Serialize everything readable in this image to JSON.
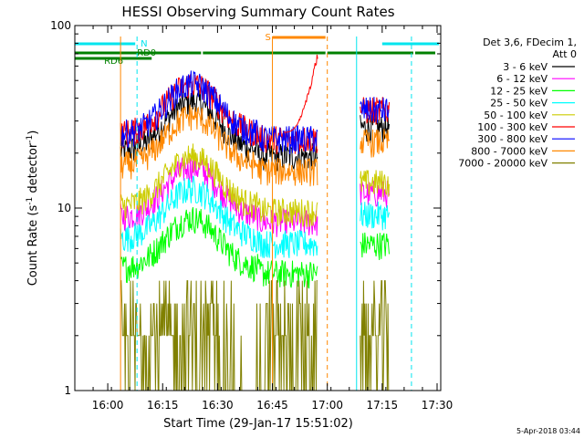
{
  "chart_data": {
    "type": "line",
    "title": "HESSI Observing Summary Count Rates",
    "xlabel": "Start Time (29-Jan-17 15:51:02)",
    "ylabel_main": "Count Rate (s",
    "ylabel_sup1": "-1",
    "ylabel_mid": " detector",
    "ylabel_sup2": "-1",
    "ylabel_end": ")",
    "yscale": "log",
    "ylim": [
      1,
      100
    ],
    "xlim_minutes": [
      0,
      100
    ],
    "x_ticks": [
      {
        "min": 9,
        "label": "16:00"
      },
      {
        "min": 24,
        "label": "16:15"
      },
      {
        "min": 39,
        "label": "16:30"
      },
      {
        "min": 54,
        "label": "16:45"
      },
      {
        "min": 69,
        "label": "17:00"
      },
      {
        "min": 84,
        "label": "17:15"
      },
      {
        "min": 99,
        "label": "17:30"
      }
    ],
    "y_ticks": [
      {
        "value": 1,
        "label": "1"
      },
      {
        "value": 10,
        "label": "10"
      },
      {
        "value": 100,
        "label": "100"
      }
    ],
    "legend_header": [
      "Det 3,6, FDecim 1,",
      "Att 0"
    ],
    "legend_position": "right",
    "series": [
      {
        "name": "3 - 6 keV",
        "color": "#000000",
        "base": 24
      },
      {
        "name": "6 - 12 keV",
        "color": "#ff00ff",
        "base": 10.5
      },
      {
        "name": "12 - 25 keV",
        "color": "#00ff00",
        "base": 5.5
      },
      {
        "name": "25 - 50 keV",
        "color": "#00ffff",
        "base": 8
      },
      {
        "name": "50 - 100 keV",
        "color": "#cccc00",
        "base": 12
      },
      {
        "name": "100 - 300 keV",
        "color": "#ff0000",
        "base": 30
      },
      {
        "name": "300 - 800 keV",
        "color": "#0000ff",
        "base": 30
      },
      {
        "name": "800 - 7000 keV",
        "color": "#ff8800",
        "base": 20
      },
      {
        "name": "7000 - 20000 keV",
        "color": "#808000",
        "base": 2.5
      }
    ],
    "flags": [
      {
        "label": "N",
        "color": "#00e5ee",
        "segments": [
          [
            0,
            17
          ],
          [
            84,
            100
          ]
        ]
      },
      {
        "label": "RD0",
        "color": "#008000",
        "segments": [
          [
            0,
            35
          ],
          [
            35,
            69
          ],
          [
            69,
            93
          ],
          [
            93,
            99
          ]
        ]
      },
      {
        "label": "RD6",
        "color": "#008000",
        "segments": []
      },
      {
        "label": "S",
        "color": "#ff8800",
        "segments": [
          [
            54,
            69
          ]
        ]
      }
    ],
    "data_intervals": [
      [
        12.5,
        66.5
      ],
      [
        78,
        86
      ]
    ],
    "red_lines": [
      [
        57,
        66.5
      ]
    ]
  },
  "footer_timestamp": "5-Apr-2018 03:44"
}
